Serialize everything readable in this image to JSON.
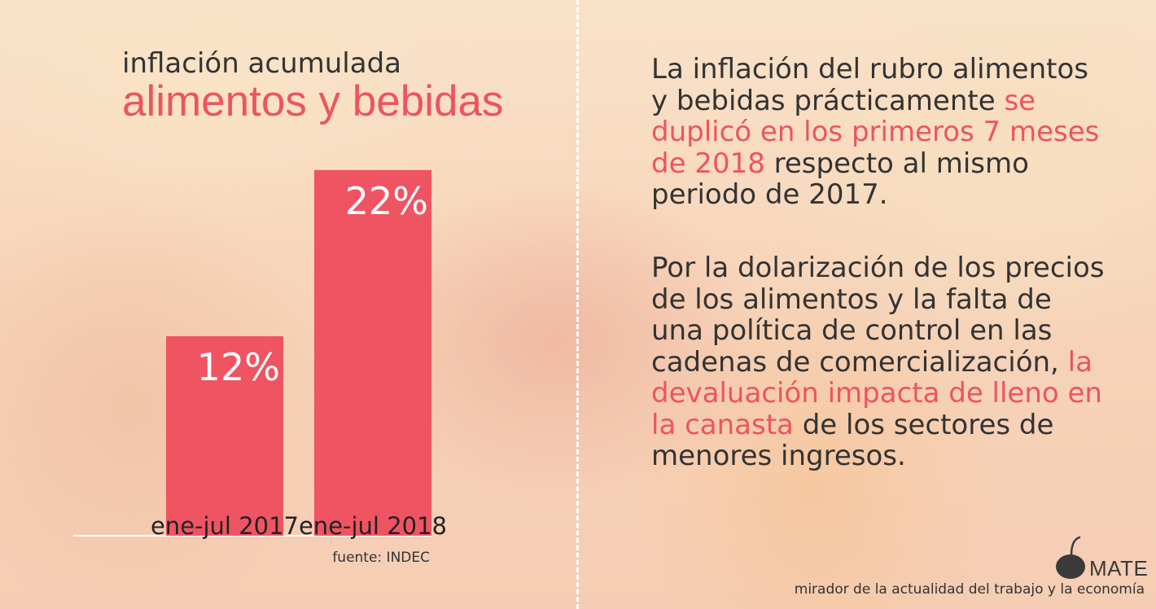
{
  "title": {
    "line1": "inflación acumulada",
    "line2": "alimentos y bebidas"
  },
  "chart_data": {
    "type": "bar",
    "categories": [
      "ene-jul 2017",
      "ene-jul 2018"
    ],
    "values": [
      12,
      22
    ],
    "value_labels": [
      "12%",
      "22%"
    ],
    "ylim": [
      0,
      24
    ],
    "bar_color": "#ef5463",
    "grid": false
  },
  "source": "fuente: INDEC",
  "body": {
    "para1": {
      "pre": "La inflación del rubro alimentos y bebidas prácticamente ",
      "highlight": "se duplicó en los primeros 7 meses de 2018",
      "post": " respecto al mismo periodo de 2017."
    },
    "para2": {
      "pre": "Por la dolarización de los precios de los alimentos y la falta de una política de control en las cadenas de comercialización, ",
      "highlight": "la devaluación impacta de lleno en la canasta",
      "post": " de los sectores de menores ingresos."
    }
  },
  "logo": {
    "word": "MATE",
    "tagline": "mirador de la actualidad del trabajo y la economía",
    "icon": "mate-gourd-icon"
  },
  "colors": {
    "accent": "#ec5462",
    "text": "#333333",
    "background": "#f7d9bf"
  }
}
